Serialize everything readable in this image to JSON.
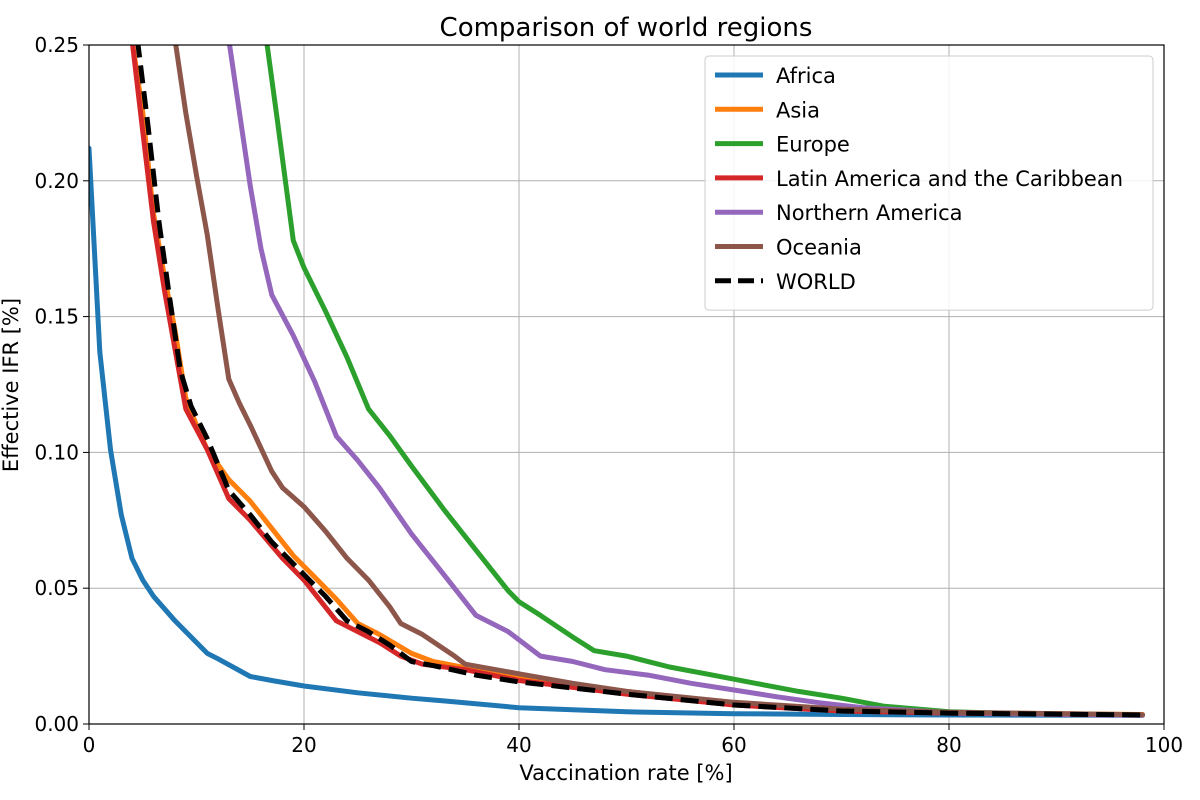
{
  "chart_data": {
    "type": "line",
    "title": "Comparison of world regions",
    "xlabel": "Vaccination rate [%]",
    "ylabel": "Effective IFR [%]",
    "xlim": [
      0,
      100
    ],
    "ylim": [
      0,
      0.25
    ],
    "xticks": [
      0,
      20,
      40,
      60,
      80,
      100
    ],
    "xtick_labels": [
      "0",
      "20",
      "40",
      "60",
      "80",
      "100"
    ],
    "yticks": [
      0,
      0.05,
      0.1,
      0.15,
      0.2,
      0.25
    ],
    "ytick_labels": [
      "0.00",
      "0.05",
      "0.10",
      "0.15",
      "0.20",
      "0.25"
    ],
    "grid": true,
    "legend_position": "top-right",
    "series": [
      {
        "name": "Africa",
        "color": "#1f77b4",
        "dash": "solid",
        "points": [
          [
            0,
            0.212
          ],
          [
            1,
            0.137
          ],
          [
            2,
            0.101
          ],
          [
            3,
            0.077
          ],
          [
            4,
            0.061
          ],
          [
            5,
            0.053
          ],
          [
            6,
            0.047
          ],
          [
            8,
            0.038
          ],
          [
            10,
            0.03
          ],
          [
            11,
            0.026
          ],
          [
            12,
            0.024
          ],
          [
            15,
            0.0175
          ],
          [
            17,
            0.016
          ],
          [
            20,
            0.014
          ],
          [
            25,
            0.0115
          ],
          [
            30,
            0.0095
          ],
          [
            33,
            0.0085
          ],
          [
            40,
            0.006
          ],
          [
            50,
            0.0045
          ],
          [
            60,
            0.0038
          ],
          [
            70,
            0.0035
          ],
          [
            80,
            0.0033
          ],
          [
            98,
            0.0032
          ]
        ]
      },
      {
        "name": "Asia",
        "color": "#ff7f0e",
        "dash": "solid",
        "points": [
          [
            4,
            0.252
          ],
          [
            5,
            0.225
          ],
          [
            6,
            0.188
          ],
          [
            7,
            0.165
          ],
          [
            8,
            0.145
          ],
          [
            9,
            0.12
          ],
          [
            10,
            0.11
          ],
          [
            11,
            0.101
          ],
          [
            13,
            0.09
          ],
          [
            15,
            0.082
          ],
          [
            17,
            0.072
          ],
          [
            19,
            0.062
          ],
          [
            21,
            0.054
          ],
          [
            23,
            0.046
          ],
          [
            25,
            0.037
          ],
          [
            27,
            0.033
          ],
          [
            30,
            0.026
          ],
          [
            32,
            0.023
          ],
          [
            36,
            0.02
          ],
          [
            40,
            0.0175
          ],
          [
            50,
            0.012
          ],
          [
            60,
            0.0075
          ],
          [
            70,
            0.005
          ],
          [
            80,
            0.0042
          ],
          [
            98,
            0.0035
          ]
        ]
      },
      {
        "name": "Europe",
        "color": "#2ca02c",
        "dash": "solid",
        "points": [
          [
            16.5,
            0.252
          ],
          [
            17.5,
            0.223
          ],
          [
            19,
            0.178
          ],
          [
            20,
            0.168
          ],
          [
            22,
            0.152
          ],
          [
            24,
            0.135
          ],
          [
            26,
            0.116
          ],
          [
            28,
            0.106
          ],
          [
            30,
            0.095
          ],
          [
            33,
            0.079
          ],
          [
            36,
            0.064
          ],
          [
            39,
            0.049
          ],
          [
            40,
            0.045
          ],
          [
            42,
            0.04
          ],
          [
            45,
            0.032
          ],
          [
            47,
            0.027
          ],
          [
            50,
            0.025
          ],
          [
            54,
            0.021
          ],
          [
            58,
            0.018
          ],
          [
            62,
            0.015
          ],
          [
            66,
            0.012
          ],
          [
            70,
            0.0095
          ],
          [
            74,
            0.0065
          ],
          [
            80,
            0.0045
          ],
          [
            90,
            0.0035
          ],
          [
            98,
            0.0033
          ]
        ]
      },
      {
        "name": "Latin America and the Caribbean",
        "color": "#d62728",
        "dash": "solid",
        "points": [
          [
            4,
            0.252
          ],
          [
            5,
            0.218
          ],
          [
            6,
            0.185
          ],
          [
            7,
            0.16
          ],
          [
            8,
            0.138
          ],
          [
            9,
            0.116
          ],
          [
            11,
            0.101
          ],
          [
            13,
            0.083
          ],
          [
            15,
            0.075
          ],
          [
            18,
            0.061
          ],
          [
            20,
            0.053
          ],
          [
            23,
            0.038
          ],
          [
            25,
            0.034
          ],
          [
            27,
            0.03
          ],
          [
            29,
            0.025
          ],
          [
            31,
            0.022
          ],
          [
            35,
            0.02
          ],
          [
            40,
            0.016
          ],
          [
            50,
            0.011
          ],
          [
            60,
            0.007
          ],
          [
            70,
            0.0048
          ],
          [
            80,
            0.004
          ],
          [
            98,
            0.0033
          ]
        ]
      },
      {
        "name": "Northern America",
        "color": "#9467bd",
        "dash": "solid",
        "points": [
          [
            13,
            0.252
          ],
          [
            14,
            0.225
          ],
          [
            15,
            0.198
          ],
          [
            16,
            0.175
          ],
          [
            17,
            0.158
          ],
          [
            19,
            0.143
          ],
          [
            21,
            0.126
          ],
          [
            23,
            0.106
          ],
          [
            25,
            0.097
          ],
          [
            27,
            0.087
          ],
          [
            30,
            0.07
          ],
          [
            33,
            0.055
          ],
          [
            36,
            0.04
          ],
          [
            39,
            0.034
          ],
          [
            42,
            0.025
          ],
          [
            45,
            0.023
          ],
          [
            48,
            0.02
          ],
          [
            52,
            0.018
          ],
          [
            56,
            0.015
          ],
          [
            60,
            0.0125
          ],
          [
            64,
            0.01
          ],
          [
            68,
            0.0078
          ],
          [
            72,
            0.006
          ],
          [
            80,
            0.0042
          ],
          [
            90,
            0.0035
          ],
          [
            98,
            0.0032
          ]
        ]
      },
      {
        "name": "Oceania",
        "color": "#8c564b",
        "dash": "solid",
        "points": [
          [
            8,
            0.252
          ],
          [
            9,
            0.225
          ],
          [
            10,
            0.202
          ],
          [
            11,
            0.18
          ],
          [
            12,
            0.153
          ],
          [
            13,
            0.127
          ],
          [
            14,
            0.118
          ],
          [
            15,
            0.11
          ],
          [
            17,
            0.093
          ],
          [
            18,
            0.087
          ],
          [
            20,
            0.08
          ],
          [
            22,
            0.071
          ],
          [
            24,
            0.061
          ],
          [
            26,
            0.053
          ],
          [
            28,
            0.043
          ],
          [
            29,
            0.037
          ],
          [
            31,
            0.033
          ],
          [
            34,
            0.025
          ],
          [
            35,
            0.022
          ],
          [
            40,
            0.0185
          ],
          [
            45,
            0.015
          ],
          [
            50,
            0.012
          ],
          [
            60,
            0.008
          ],
          [
            70,
            0.0055
          ],
          [
            80,
            0.0043
          ],
          [
            98,
            0.0034
          ]
        ]
      },
      {
        "name": "WORLD",
        "color": "#000000",
        "dash": "dashed",
        "points": [
          [
            4.5,
            0.252
          ],
          [
            5.5,
            0.22
          ],
          [
            6.5,
            0.185
          ],
          [
            7.5,
            0.157
          ],
          [
            8.5,
            0.13
          ],
          [
            9.5,
            0.117
          ],
          [
            11,
            0.105
          ],
          [
            13,
            0.086
          ],
          [
            15,
            0.077
          ],
          [
            17,
            0.067
          ],
          [
            20,
            0.055
          ],
          [
            22,
            0.047
          ],
          [
            24,
            0.038
          ],
          [
            26,
            0.034
          ],
          [
            28,
            0.029
          ],
          [
            30,
            0.023
          ],
          [
            32,
            0.0215
          ],
          [
            36,
            0.018
          ],
          [
            40,
            0.0155
          ],
          [
            50,
            0.011
          ],
          [
            60,
            0.007
          ],
          [
            70,
            0.0048
          ],
          [
            80,
            0.004
          ],
          [
            98,
            0.0033
          ]
        ]
      }
    ]
  }
}
